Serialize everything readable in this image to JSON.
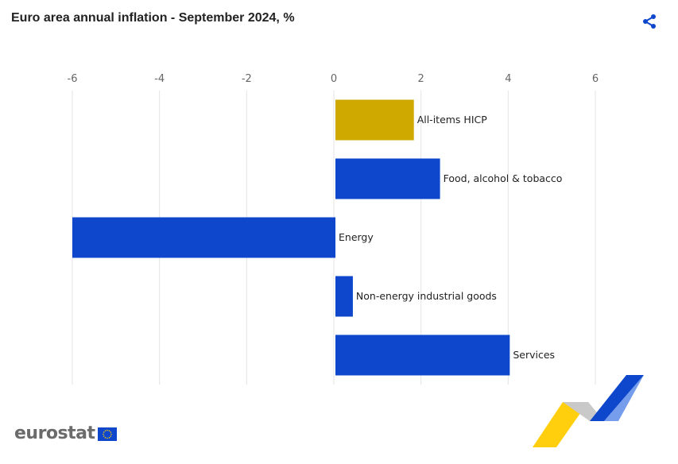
{
  "header": {
    "title": "Euro area annual inflation - September 2024, %",
    "share_icon": "share-icon"
  },
  "branding": {
    "logo_text": "eurostat",
    "flag_icon": "eu-flag-icon"
  },
  "colors": {
    "highlight": "#cfa800",
    "bar": "#0e47cb",
    "grid": "#e3e3e3",
    "accent": "#0e47cb"
  },
  "chart_data": {
    "type": "bar",
    "orientation": "horizontal",
    "title": "Euro area annual inflation - September 2024, %",
    "xlabel": "",
    "ylabel": "",
    "xlim": [
      -6,
      6
    ],
    "xticks": [
      -6,
      -4,
      -2,
      0,
      2,
      4,
      6
    ],
    "grid": true,
    "legend": "none",
    "categories": [
      "All-items HICP",
      "Food, alcohol & tobacco",
      "Energy",
      "Non-energy industrial goods",
      "Services"
    ],
    "values": [
      1.8,
      2.4,
      -6.0,
      0.4,
      4.0
    ],
    "highlight_index": 0
  }
}
